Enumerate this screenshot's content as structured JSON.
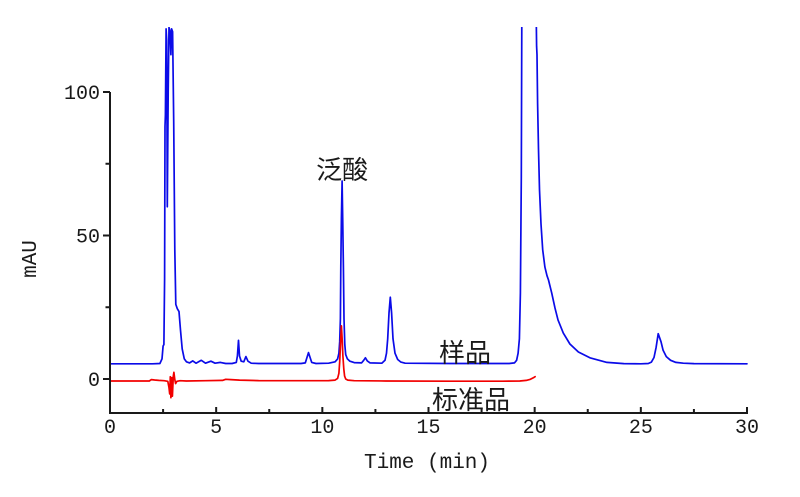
{
  "figure": {
    "background": "#ffffff",
    "axis_color": "#1a1a1a",
    "tick_label_color": "#1a1a1a"
  },
  "chart_data": {
    "type": "line",
    "title": "",
    "xlabel": "Time (min)",
    "ylabel": "mAU",
    "xlim": [
      0,
      30
    ],
    "ylim_visible": [
      -12,
      123
    ],
    "x_major_ticks": [
      0,
      5,
      10,
      15,
      20,
      25,
      30
    ],
    "x_minor_ticks": [
      2.5,
      7.5,
      12.5,
      17.5,
      22.5,
      27.5
    ],
    "y_major_ticks": [
      0,
      50,
      100
    ],
    "y_minor_ticks": [
      25,
      75
    ],
    "grid": false,
    "legend_position": "none",
    "series": [
      {
        "name": "样品",
        "color": "#0b0be8",
        "points": [
          [
            0,
            5.3
          ],
          [
            2.0,
            5.3
          ],
          [
            2.35,
            5.4
          ],
          [
            2.45,
            7
          ],
          [
            2.5,
            11.5
          ],
          [
            2.54,
            12
          ],
          [
            2.57,
            35
          ],
          [
            2.59,
            88
          ],
          [
            2.61,
            92
          ],
          [
            2.64,
            122
          ],
          [
            2.67,
            118
          ],
          [
            2.7,
            60
          ],
          [
            2.74,
            100
          ],
          [
            2.78,
            122.5
          ],
          [
            2.83,
            121
          ],
          [
            2.87,
            113
          ],
          [
            2.9,
            122
          ],
          [
            2.95,
            121
          ],
          [
            3.0,
            90
          ],
          [
            3.05,
            45
          ],
          [
            3.1,
            26
          ],
          [
            3.17,
            24.5
          ],
          [
            3.25,
            23.5
          ],
          [
            3.32,
            17
          ],
          [
            3.4,
            10.5
          ],
          [
            3.5,
            7
          ],
          [
            3.6,
            6
          ],
          [
            3.75,
            5.6
          ],
          [
            3.9,
            6.3
          ],
          [
            4.05,
            5.5
          ],
          [
            4.3,
            6.5
          ],
          [
            4.5,
            5.5
          ],
          [
            4.75,
            6.2
          ],
          [
            4.95,
            5.5
          ],
          [
            5.2,
            5.8
          ],
          [
            5.45,
            5.4
          ],
          [
            5.75,
            5.4
          ],
          [
            5.95,
            5.8
          ],
          [
            6.0,
            8
          ],
          [
            6.05,
            13.5
          ],
          [
            6.1,
            8
          ],
          [
            6.18,
            6.2
          ],
          [
            6.3,
            6.0
          ],
          [
            6.4,
            7.8
          ],
          [
            6.5,
            6.2
          ],
          [
            6.65,
            5.5
          ],
          [
            7.0,
            5.4
          ],
          [
            8.0,
            5.4
          ],
          [
            9.0,
            5.4
          ],
          [
            9.2,
            5.6
          ],
          [
            9.35,
            9.2
          ],
          [
            9.5,
            5.8
          ],
          [
            9.7,
            5.4
          ],
          [
            10.3,
            5.5
          ],
          [
            10.6,
            6
          ],
          [
            10.72,
            7
          ],
          [
            10.78,
            9
          ],
          [
            10.82,
            13
          ],
          [
            10.85,
            21
          ],
          [
            10.87,
            39
          ],
          [
            10.9,
            56
          ],
          [
            10.93,
            69
          ],
          [
            10.96,
            56
          ],
          [
            10.99,
            39
          ],
          [
            11.02,
            21
          ],
          [
            11.06,
            12
          ],
          [
            11.1,
            8.5
          ],
          [
            11.18,
            7
          ],
          [
            11.3,
            6.2
          ],
          [
            11.5,
            5.7
          ],
          [
            11.85,
            5.6
          ],
          [
            11.95,
            6.5
          ],
          [
            12.03,
            7.4
          ],
          [
            12.12,
            6.3
          ],
          [
            12.25,
            5.6
          ],
          [
            12.8,
            5.5
          ],
          [
            12.95,
            6.5
          ],
          [
            13.02,
            9
          ],
          [
            13.08,
            14
          ],
          [
            13.14,
            23
          ],
          [
            13.2,
            28.5
          ],
          [
            13.26,
            23
          ],
          [
            13.33,
            14
          ],
          [
            13.42,
            9
          ],
          [
            13.55,
            6.8
          ],
          [
            13.7,
            5.9
          ],
          [
            13.9,
            5.5
          ],
          [
            16,
            5.4
          ],
          [
            18.8,
            5.4
          ],
          [
            19.05,
            5.6
          ],
          [
            19.15,
            6.5
          ],
          [
            19.22,
            9
          ],
          [
            19.28,
            14
          ],
          [
            19.33,
            30
          ],
          [
            19.37,
            70
          ],
          [
            19.4,
            135
          ],
          [
            20.06,
            135
          ],
          [
            20.09,
            116
          ],
          [
            20.11,
            113
          ],
          [
            20.14,
            96
          ],
          [
            20.18,
            80
          ],
          [
            20.23,
            66
          ],
          [
            20.3,
            54
          ],
          [
            20.38,
            45
          ],
          [
            20.48,
            39
          ],
          [
            20.58,
            36
          ],
          [
            20.65,
            34.5
          ],
          [
            20.8,
            30
          ],
          [
            20.96,
            24.7
          ],
          [
            21.1,
            20.6
          ],
          [
            21.35,
            16
          ],
          [
            21.66,
            12.2
          ],
          [
            22.06,
            9.4
          ],
          [
            22.6,
            7.4
          ],
          [
            23.4,
            5.8
          ],
          [
            24.2,
            5.35
          ],
          [
            25.0,
            5.3
          ],
          [
            25.35,
            5.4
          ],
          [
            25.5,
            5.9
          ],
          [
            25.62,
            7.5
          ],
          [
            25.72,
            11
          ],
          [
            25.82,
            15.8
          ],
          [
            25.95,
            13
          ],
          [
            26.05,
            10
          ],
          [
            26.2,
            7.8
          ],
          [
            26.4,
            6.5
          ],
          [
            26.65,
            5.8
          ],
          [
            27.0,
            5.5
          ],
          [
            27.5,
            5.35
          ],
          [
            30,
            5.3
          ]
        ]
      },
      {
        "name": "标准品",
        "color": "#f20000",
        "points": [
          [
            0,
            -0.7
          ],
          [
            1.85,
            -0.7
          ],
          [
            1.95,
            -0.2
          ],
          [
            2.1,
            -0.35
          ],
          [
            2.3,
            -0.5
          ],
          [
            2.55,
            -0.6
          ],
          [
            2.72,
            -0.8
          ],
          [
            2.78,
            -3
          ],
          [
            2.81,
            -5.2
          ],
          [
            2.84,
            0.8
          ],
          [
            2.87,
            -6.5
          ],
          [
            2.91,
            0.5
          ],
          [
            2.94,
            -6
          ],
          [
            2.98,
            1
          ],
          [
            3.01,
            2.3
          ],
          [
            3.05,
            -0.2
          ],
          [
            3.09,
            -1.6
          ],
          [
            3.15,
            -0.8
          ],
          [
            3.3,
            -0.6
          ],
          [
            3.6,
            -0.7
          ],
          [
            4.5,
            -0.6
          ],
          [
            5.3,
            -0.5
          ],
          [
            5.45,
            -0.1
          ],
          [
            5.7,
            -0.2
          ],
          [
            6.1,
            -0.4
          ],
          [
            7.0,
            -0.55
          ],
          [
            8.5,
            -0.6
          ],
          [
            9.5,
            -0.6
          ],
          [
            10.3,
            -0.55
          ],
          [
            10.6,
            -0.4
          ],
          [
            10.72,
            0.2
          ],
          [
            10.78,
            2
          ],
          [
            10.82,
            6
          ],
          [
            10.86,
            13
          ],
          [
            10.9,
            18.5
          ],
          [
            10.94,
            13
          ],
          [
            10.97,
            8
          ],
          [
            11.01,
            3.5
          ],
          [
            11.05,
            1
          ],
          [
            11.1,
            0
          ],
          [
            11.2,
            -0.4
          ],
          [
            11.5,
            -0.6
          ],
          [
            13,
            -0.7
          ],
          [
            16,
            -0.75
          ],
          [
            18.5,
            -0.75
          ],
          [
            19.3,
            -0.7
          ],
          [
            19.6,
            -0.5
          ],
          [
            19.8,
            -0.1
          ],
          [
            19.95,
            0.5
          ],
          [
            20.02,
            0.8
          ]
        ]
      }
    ],
    "annotations": [
      {
        "id": "peak-label-pantothenic-acid",
        "text": "泛酸",
        "t": 10.93,
        "v": 69.7,
        "font_px": 26
      },
      {
        "id": "series-label-sample",
        "text": "样品",
        "t": 16.72,
        "v": 5.9,
        "font_px": 26
      },
      {
        "id": "series-label-standard",
        "text": "标准品",
        "t": 17.0,
        "v": -10.45,
        "font_px": 26
      }
    ]
  }
}
